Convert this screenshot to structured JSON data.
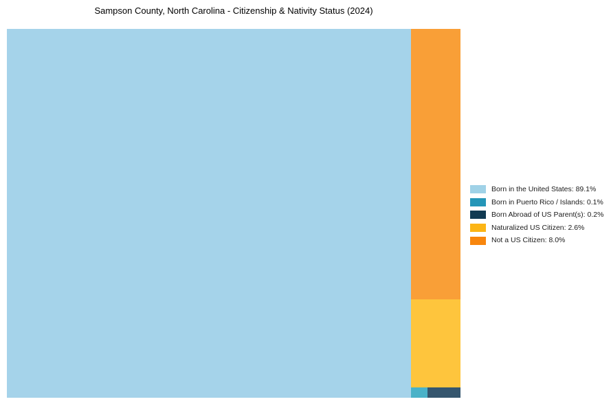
{
  "title": "Sampson County, North Carolina - Citizenship & Nativity Status (2024)",
  "chart_data": {
    "type": "treemap",
    "title": "Sampson County, North Carolina - Citizenship & Nativity Status (2024)",
    "legend_position": "right-middle",
    "area": "100%",
    "items": [
      {
        "id": "born-us",
        "label": "Born in the United States",
        "value_pct": 89.1,
        "legend_label": "Born in the United States: 89.1%",
        "block_color": "#A5D3EA",
        "legend_color": "#A0D2E7"
      },
      {
        "id": "born-pr",
        "label": "Born in Puerto Rico / Islands",
        "value_pct": 0.1,
        "legend_label": "Born in Puerto Rico / Islands: 0.1%",
        "block_color": "#4AB2C8",
        "legend_color": "#2596B8"
      },
      {
        "id": "born-abroad",
        "label": "Born Abroad of US Parent(s)",
        "value_pct": 0.2,
        "legend_label": "Born Abroad of US Parent(s): 0.2%",
        "block_color": "#35566E",
        "legend_color": "#113A52"
      },
      {
        "id": "naturalized",
        "label": "Naturalized US Citizen",
        "value_pct": 2.6,
        "legend_label": "Naturalized US Citizen: 2.6%",
        "block_color": "#FEC53D",
        "legend_color": "#FCB515"
      },
      {
        "id": "not-citizen",
        "label": "Not a US Citizen",
        "value_pct": 8.0,
        "legend_label": "Not a US Citizen: 8.0%",
        "block_color": "#F99F37",
        "legend_color": "#F8860D"
      }
    ]
  }
}
